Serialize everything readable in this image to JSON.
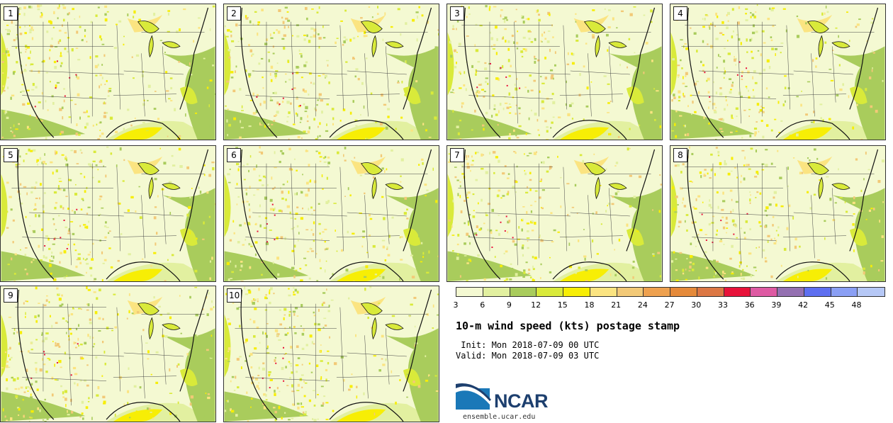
{
  "members": [
    "1",
    "2",
    "3",
    "4",
    "5",
    "6",
    "7",
    "8",
    "9",
    "10"
  ],
  "colorbar": {
    "colors": [
      "#f4f9d2",
      "#e2f0a0",
      "#a9cc5c",
      "#d9ea3a",
      "#f7ee05",
      "#fbe481",
      "#f2c977",
      "#eea14f",
      "#e58a3a",
      "#dc7744",
      "#e8123a",
      "#de5aa3",
      "#9470b1",
      "#5e6ff0",
      "#8a9ff4",
      "#b6c8f6"
    ],
    "ticks": [
      "3",
      "6",
      "9",
      "12",
      "15",
      "18",
      "21",
      "24",
      "27",
      "30",
      "33",
      "36",
      "39",
      "42",
      "45",
      "48"
    ]
  },
  "title": "10-m wind speed (kts) postage stamp",
  "init": " Init: Mon 2018-07-09 00 UTC",
  "valid": "Valid: Mon 2018-07-09 03 UTC",
  "logo": {
    "name": "NCAR",
    "site": "ensemble.ucar.edu"
  }
}
